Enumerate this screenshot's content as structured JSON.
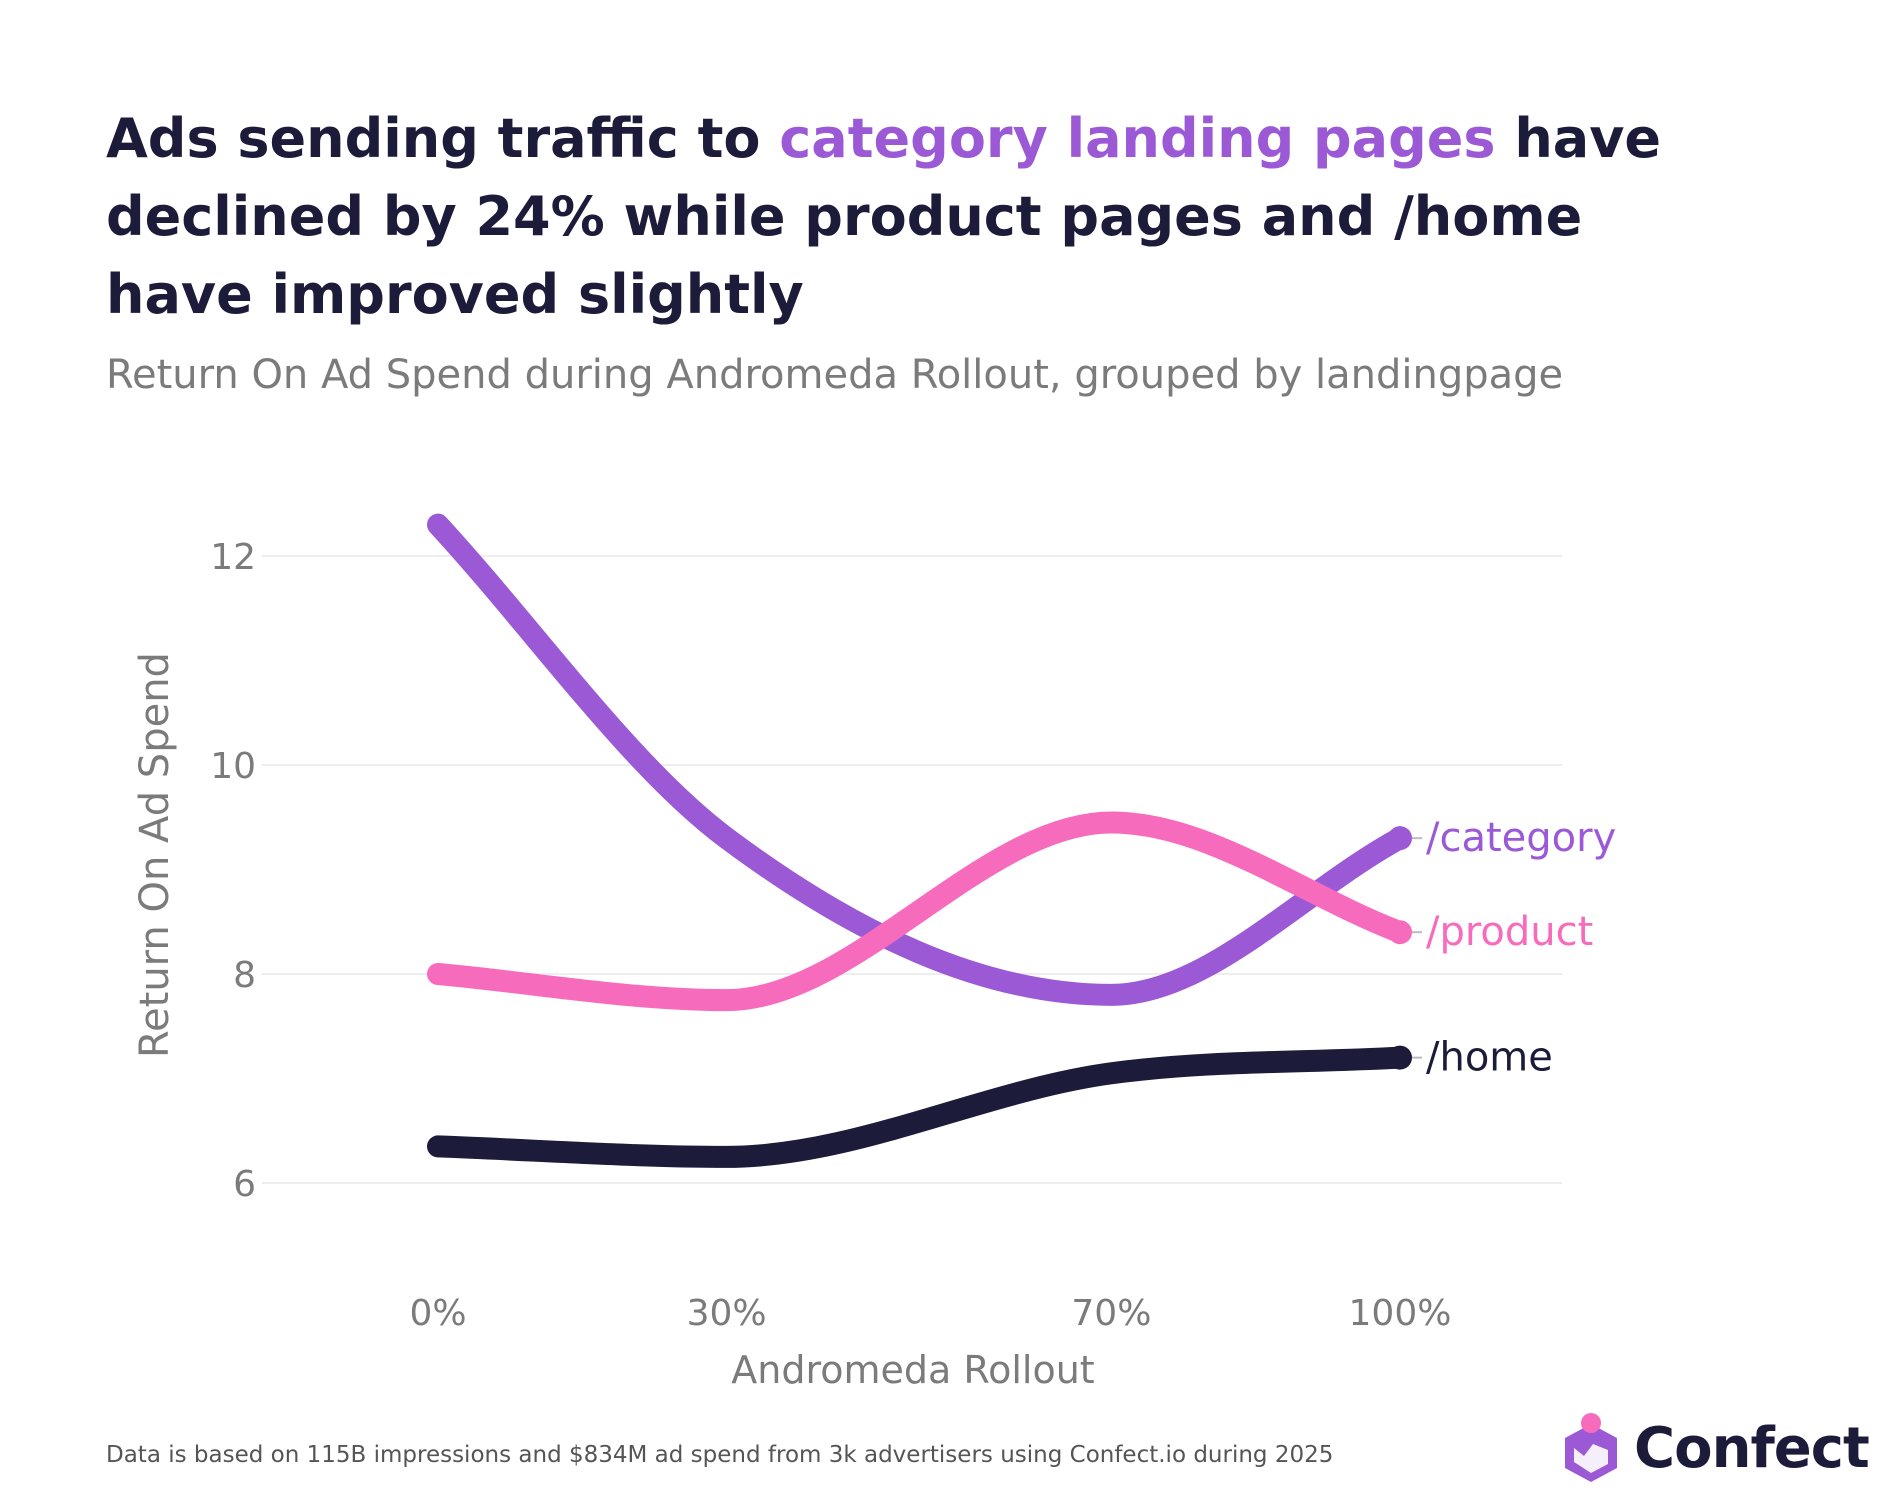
{
  "headline": {
    "part1": "Ads sending traffic to ",
    "highlight": "category landing pages",
    "part2": " have declined by 24% while product pages and /home have improved slightly"
  },
  "subtitle": "Return On Ad Spend during Andromeda Rollout, grouped by landingpage",
  "chart_data": {
    "type": "line",
    "title": "Return On Ad Spend during Andromeda Rollout, grouped by landingpage",
    "xlabel": "Andromeda Rollout",
    "ylabel": "Return On Ad Spend",
    "categories": [
      "0%",
      "30%",
      "70%",
      "100%"
    ],
    "x": [
      0,
      30,
      70,
      100
    ],
    "ylim": [
      5.2,
      12.6
    ],
    "yticks": [
      6,
      8,
      10,
      12
    ],
    "grid": true,
    "legend": "end-of-line labels",
    "series": [
      {
        "name": "/category",
        "values": [
          12.3,
          9.3,
          7.8,
          9.3
        ],
        "color": "#9b59d6"
      },
      {
        "name": "/product",
        "values": [
          8.0,
          7.75,
          9.45,
          8.4
        ],
        "color": "#f76bbd"
      },
      {
        "name": "/home",
        "values": [
          6.35,
          6.25,
          7.05,
          7.2
        ],
        "color": "#1c1b3a"
      }
    ]
  },
  "footnote": "Data is based on 115B impressions and $834M ad spend from 3k advertisers using Confect.io during 2025",
  "logo": {
    "text": "Confect",
    "icon": "confect-logo-icon"
  },
  "colors": {
    "category": "#9b59d6",
    "product": "#f76bbd",
    "home": "#1c1b3a",
    "axis_text": "#7b7b7b",
    "grid": "#eeeeee"
  }
}
